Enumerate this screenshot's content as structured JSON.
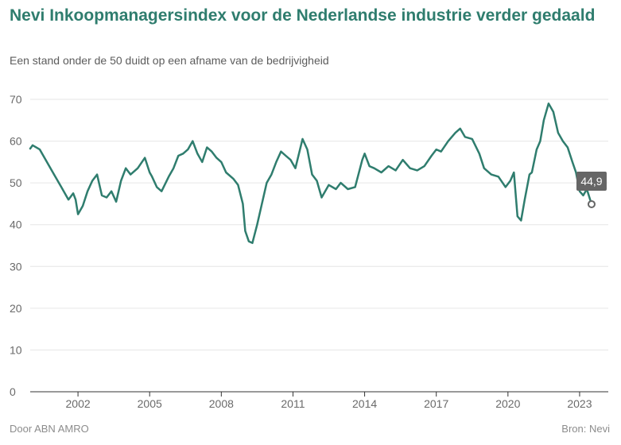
{
  "header": {
    "title": "Nevi Inkoopmanagersindex voor de Nederlandse industrie verder gedaald",
    "subtitle": "Een stand onder de 50 duidt op een afname van de bedrijvigheid"
  },
  "footer": {
    "credit": "Door ABN AMRO",
    "source": "Bron: Nevi"
  },
  "colors": {
    "line": "#2f7d6e",
    "title": "#2f7d6e",
    "grid": "#e6e6e6",
    "baseline": "#333333",
    "label_bg": "#666666"
  },
  "chart_data": {
    "type": "line",
    "title": "Nevi Inkoopmanagersindex voor de Nederlandse industrie verder gedaald",
    "subtitle": "Een stand onder de 50 duidt op een afname van de bedrijvigheid",
    "xlabel": "",
    "ylabel": "",
    "ylim": [
      0,
      70
    ],
    "xlim": [
      2000,
      2024.2
    ],
    "y_ticks": [
      0,
      10,
      20,
      30,
      40,
      50,
      60,
      70
    ],
    "x_ticks": [
      2002,
      2005,
      2008,
      2011,
      2014,
      2017,
      2020,
      2023
    ],
    "grid": "horizontal",
    "legend": "none",
    "series": [
      {
        "x": [
          2000.0,
          2000.1,
          2000.4,
          2000.7,
          2001.0,
          2001.3,
          2001.6,
          2001.8,
          2001.9,
          2002.0,
          2002.2,
          2002.4,
          2002.6,
          2002.8,
          2003.0,
          2003.2,
          2003.4,
          2003.6,
          2003.8,
          2004.0,
          2004.2,
          2004.5,
          2004.8,
          2005.0,
          2005.1,
          2005.3,
          2005.5,
          2005.8,
          2006.0,
          2006.2,
          2006.4,
          2006.6,
          2006.8,
          2007.0,
          2007.2,
          2007.4,
          2007.6,
          2007.8,
          2008.0,
          2008.2,
          2008.5,
          2008.7,
          2008.9,
          2009.0,
          2009.15,
          2009.3,
          2009.5,
          2009.7,
          2009.9,
          2010.1,
          2010.3,
          2010.5,
          2010.7,
          2010.9,
          2011.1,
          2011.25,
          2011.4,
          2011.6,
          2011.8,
          2012.0,
          2012.2,
          2012.5,
          2012.8,
          2013.0,
          2013.3,
          2013.6,
          2013.9,
          2014.0,
          2014.2,
          2014.4,
          2014.7,
          2015.0,
          2015.3,
          2015.6,
          2015.9,
          2016.2,
          2016.5,
          2016.8,
          2017.0,
          2017.2,
          2017.5,
          2017.8,
          2018.0,
          2018.2,
          2018.5,
          2018.8,
          2019.0,
          2019.3,
          2019.6,
          2019.9,
          2020.1,
          2020.25,
          2020.4,
          2020.55,
          2020.7,
          2020.9,
          2021.0,
          2021.2,
          2021.35,
          2021.5,
          2021.7,
          2021.9,
          2022.1,
          2022.3,
          2022.5,
          2022.7,
          2022.85,
          2023.0,
          2023.15,
          2023.3,
          2023.5
        ],
        "values": [
          58.2,
          59.0,
          58.0,
          55.0,
          52.0,
          49.0,
          46.0,
          47.5,
          46.0,
          42.5,
          44.5,
          48.0,
          50.5,
          52.0,
          47.0,
          46.5,
          48.0,
          45.5,
          50.5,
          53.5,
          52.0,
          53.5,
          56.0,
          52.5,
          51.5,
          49.0,
          48.0,
          51.5,
          53.5,
          56.5,
          57.0,
          58.0,
          60.0,
          57.0,
          55.0,
          58.5,
          57.5,
          56.0,
          55.0,
          52.5,
          51.0,
          49.5,
          45.0,
          38.5,
          36.0,
          35.6,
          40.0,
          45.0,
          50.0,
          52.0,
          55.0,
          57.5,
          56.5,
          55.5,
          53.5,
          57.0,
          60.5,
          58.0,
          52.0,
          50.5,
          46.5,
          49.5,
          48.5,
          50.0,
          48.5,
          49.0,
          55.5,
          57.0,
          54.0,
          53.5,
          52.5,
          54.0,
          53.0,
          55.5,
          53.5,
          53.0,
          54.0,
          56.5,
          58.0,
          57.5,
          60.0,
          62.0,
          63.0,
          61.0,
          60.5,
          57.0,
          53.5,
          52.0,
          51.5,
          49.0,
          50.5,
          52.5,
          42.0,
          41.0,
          46.0,
          52.0,
          52.5,
          58.0,
          60.0,
          65.0,
          69.0,
          67.0,
          62.0,
          60.0,
          58.5,
          55.0,
          52.5,
          48.0,
          47.0,
          48.5,
          44.9
        ]
      }
    ],
    "last_value_label": "44,9",
    "last_point": {
      "x": 2023.5,
      "y": 44.9
    }
  }
}
